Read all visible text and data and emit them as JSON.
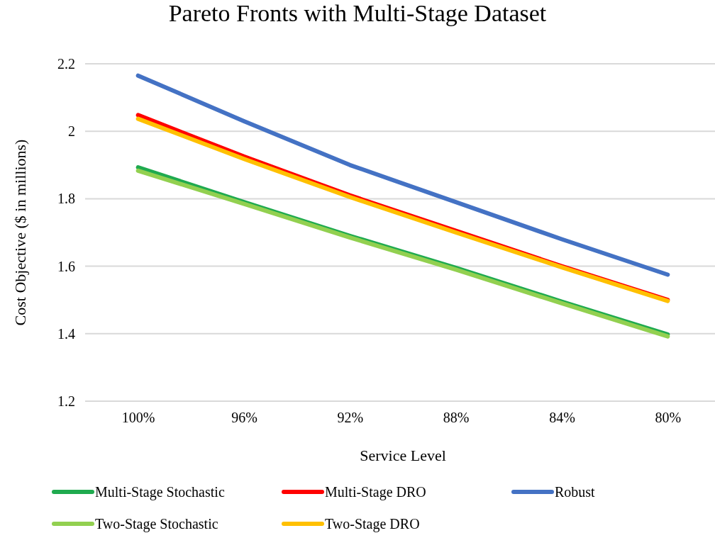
{
  "chart_data": {
    "type": "line",
    "title": "Pareto Fronts with Multi-Stage Dataset",
    "xlabel": "Service Level",
    "ylabel": "Cost Objective ($ in millions)",
    "categories": [
      "100%",
      "96%",
      "92%",
      "88%",
      "84%",
      "80%"
    ],
    "ylim": [
      1.2,
      2.2
    ],
    "yticks": [
      {
        "value": 1.2,
        "label": "1.2"
      },
      {
        "value": 1.4,
        "label": "1.4"
      },
      {
        "value": 1.6,
        "label": "1.6"
      },
      {
        "value": 1.8,
        "label": "1.8"
      },
      {
        "value": 2,
        "label": "2"
      },
      {
        "value": 2.2,
        "label": "2.2"
      }
    ],
    "grid": "y",
    "legend": "bottom",
    "marker": "none",
    "line_style": "solid",
    "series": [
      {
        "name": "Multi-Stage Stochastic",
        "color": "#1faa4f",
        "values": [
          1.893,
          1.79,
          1.69,
          1.595,
          1.495,
          1.398
        ]
      },
      {
        "name": "Multi-Stage DRO",
        "color": "#ff0000",
        "values": [
          2.048,
          1.925,
          1.81,
          1.705,
          1.6,
          1.5
        ]
      },
      {
        "name": "Robust",
        "color": "#4472c4",
        "values": [
          2.165,
          2.03,
          1.9,
          1.79,
          1.68,
          1.575
        ]
      },
      {
        "name": "Two-Stage Stochastic",
        "color": "#92d050",
        "values": [
          1.883,
          1.785,
          1.685,
          1.59,
          1.49,
          1.392
        ]
      },
      {
        "name": "Two-Stage DRO",
        "color": "#ffc000",
        "values": [
          2.037,
          1.918,
          1.805,
          1.7,
          1.597,
          1.497
        ]
      }
    ]
  }
}
